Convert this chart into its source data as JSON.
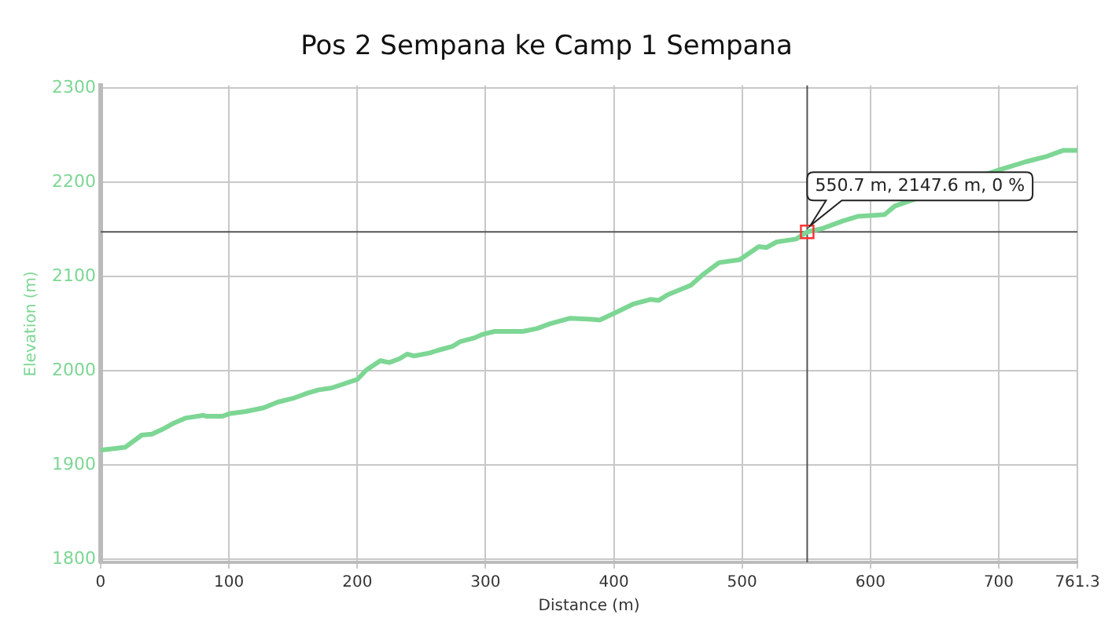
{
  "chart_data": {
    "type": "line",
    "title": "Pos 2 Sempana ke Camp 1 Sempana",
    "xlabel": "Distance (m)",
    "ylabel": "Elevation (m)",
    "x": [
      0,
      19,
      32,
      40,
      48,
      56,
      66,
      80,
      82,
      95,
      101,
      113,
      127,
      138,
      150,
      160,
      170,
      180,
      191,
      200,
      207,
      218,
      225,
      233,
      239,
      244,
      256,
      263,
      274,
      280,
      291,
      298,
      307,
      317,
      329,
      340,
      350,
      366,
      382,
      389,
      403,
      415,
      429,
      435,
      442,
      460,
      470,
      482,
      498,
      513,
      519,
      527,
      542,
      550.7,
      562,
      578,
      590,
      611,
      619,
      636,
      660,
      697,
      721,
      738,
      750,
      761.3
    ],
    "series": [
      {
        "color": "#7dd694",
        "values": [
          1916,
          1919,
          1932,
          1933,
          1938,
          1944,
          1950,
          1953,
          1952,
          1952,
          1955,
          1957,
          1961,
          1967,
          1971,
          1976,
          1980,
          1982,
          1987,
          1991,
          2001,
          2011,
          2009,
          2013,
          2018,
          2016,
          2019,
          2022,
          2026,
          2031,
          2035,
          2039,
          2042,
          2042,
          2042,
          2045,
          2050,
          2056,
          2055,
          2054,
          2063,
          2071,
          2076,
          2075,
          2081,
          2091,
          2103,
          2115,
          2118,
          2132,
          2131,
          2137,
          2140,
          2147.6,
          2151,
          2159,
          2164,
          2166,
          2175,
          null,
          null,
          2212,
          2222,
          2228,
          2234,
          2234
        ]
      }
    ],
    "xlim": [
      0,
      761.3
    ],
    "xticks": [
      0,
      100,
      200,
      300,
      400,
      500,
      600,
      700,
      761.3
    ],
    "ylim": [
      1797,
      2303
    ],
    "yticks": [
      1800,
      1900,
      2000,
      2100,
      2200,
      2300
    ],
    "grid": true,
    "marker": "none",
    "line_style": "solid",
    "ref_lines": [
      {
        "axis": "x",
        "value": 550.7,
        "color": "#555555"
      },
      {
        "axis": "y",
        "value": 2147.6,
        "color": "#555555"
      }
    ],
    "annotations": [
      {
        "text": "550.7 m, 2147.6 m, 0 %",
        "x": 550.7,
        "y": 2147.6
      }
    ]
  }
}
